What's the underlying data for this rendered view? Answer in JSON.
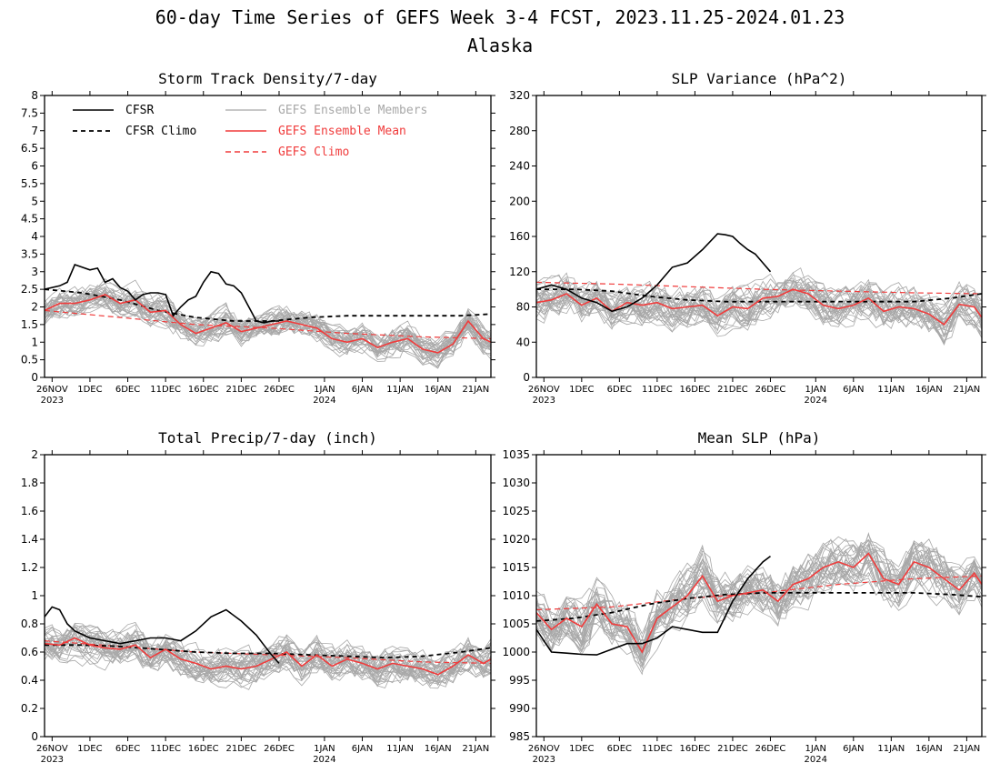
{
  "header": {
    "title": "60-day Time Series of GEFS Week 3-4 FCST, 2023.11.25-2024.01.23",
    "subtitle": "Alaska"
  },
  "legend": {
    "cfsr": "CFSR",
    "cfsr_climo": "CFSR Climo",
    "members": "GEFS Ensemble Members",
    "ens_mean": "GEFS Ensemble Mean",
    "gefs_climo": "GEFS Climo"
  },
  "colors": {
    "cfsr": "#000000",
    "members": "#a8a8a8",
    "ens_mean": "#f03c3c",
    "gefs_climo": "#f03c3c"
  },
  "x_axis": {
    "ticks": [
      {
        "day": 1,
        "label": "26NOV",
        "year": "2023"
      },
      {
        "day": 6,
        "label": "1DEC"
      },
      {
        "day": 11,
        "label": "6DEC"
      },
      {
        "day": 16,
        "label": "11DEC"
      },
      {
        "day": 21,
        "label": "16DEC"
      },
      {
        "day": 26,
        "label": "21DEC"
      },
      {
        "day": 31,
        "label": "26DEC"
      },
      {
        "day": 37,
        "label": "1JAN",
        "year": "2024"
      },
      {
        "day": 42,
        "label": "6JAN"
      },
      {
        "day": 47,
        "label": "11JAN"
      },
      {
        "day": 52,
        "label": "16JAN"
      },
      {
        "day": 57,
        "label": "21JAN"
      }
    ]
  },
  "chart_data": [
    {
      "type": "line",
      "title": "Storm Track Density/7-day",
      "ylim": [
        0,
        8
      ],
      "yticks": [
        "0",
        "0.5",
        "1",
        "1.5",
        "2",
        "2.5",
        "3",
        "3.5",
        "4",
        "4.5",
        "5",
        "5.5",
        "6",
        "6.5",
        "7",
        "7.5",
        "8"
      ],
      "show_legend": true,
      "series": [
        {
          "name": "CFSR",
          "style": "solid-black",
          "x": [
            0,
            2,
            3,
            4,
            6,
            7,
            8,
            9,
            10,
            11,
            12,
            13,
            14,
            15,
            16,
            17,
            18,
            19,
            20,
            21,
            22,
            23,
            24,
            25,
            26,
            27,
            28,
            29,
            30,
            31
          ],
          "y": [
            2.5,
            2.6,
            2.7,
            3.2,
            3.05,
            3.1,
            2.7,
            2.8,
            2.55,
            2.45,
            2.2,
            2.35,
            2.4,
            2.4,
            2.35,
            1.75,
            2.0,
            2.2,
            2.3,
            2.7,
            3.0,
            2.95,
            2.65,
            2.6,
            2.4,
            2.0,
            1.6,
            1.55,
            1.6,
            1.6
          ]
        },
        {
          "name": "CFSR Climo",
          "style": "dashed-black",
          "x": [
            0,
            5,
            10,
            15,
            20,
            25,
            30,
            35,
            40,
            45,
            50,
            55,
            59
          ],
          "y": [
            2.5,
            2.4,
            2.2,
            1.9,
            1.7,
            1.6,
            1.6,
            1.7,
            1.75,
            1.75,
            1.75,
            1.75,
            1.8
          ]
        },
        {
          "name": "GEFS Ensemble Mean",
          "style": "solid-red",
          "x": [
            0,
            2,
            4,
            6,
            8,
            10,
            12,
            14,
            16,
            18,
            20,
            22,
            24,
            26,
            28,
            30,
            32,
            34,
            36,
            38,
            40,
            42,
            44,
            46,
            48,
            50,
            52,
            54,
            56,
            58,
            59
          ],
          "y": [
            1.9,
            2.1,
            2.1,
            2.2,
            2.35,
            2.1,
            2.2,
            1.85,
            1.9,
            1.5,
            1.25,
            1.4,
            1.55,
            1.3,
            1.4,
            1.5,
            1.6,
            1.5,
            1.4,
            1.1,
            1.0,
            1.1,
            0.85,
            1.0,
            1.1,
            0.8,
            0.7,
            0.95,
            1.6,
            1.1,
            1.0
          ]
        },
        {
          "name": "GEFS Climo",
          "style": "dashed-red",
          "x": [
            0,
            10,
            20,
            30,
            40,
            50,
            59
          ],
          "y": [
            1.9,
            1.7,
            1.5,
            1.4,
            1.25,
            1.15,
            1.1
          ]
        }
      ],
      "members": {
        "count": 31,
        "mean_ref": "GEFS Ensemble Mean",
        "spread": 0.55,
        "seed": 11
      }
    },
    {
      "type": "line",
      "title": "SLP Variance (hPa^2)",
      "ylim": [
        0,
        320
      ],
      "yticks": [
        "0",
        "40",
        "80",
        "120",
        "160",
        "200",
        "240",
        "280",
        "320"
      ],
      "show_legend": false,
      "series": [
        {
          "name": "CFSR",
          "style": "solid-black",
          "x": [
            0,
            2,
            4,
            6,
            8,
            10,
            12,
            14,
            16,
            18,
            20,
            22,
            24,
            25,
            26,
            27,
            28,
            29,
            30,
            31
          ],
          "y": [
            100,
            105,
            100,
            90,
            85,
            75,
            80,
            90,
            105,
            125,
            130,
            145,
            163,
            162,
            160,
            152,
            145,
            140,
            130,
            120
          ]
        },
        {
          "name": "CFSR Climo",
          "style": "dashed-black",
          "x": [
            0,
            5,
            10,
            15,
            20,
            25,
            30,
            35,
            40,
            45,
            50,
            55,
            59
          ],
          "y": [
            100,
            100,
            98,
            92,
            88,
            86,
            86,
            86,
            86,
            86,
            86,
            90,
            95
          ]
        },
        {
          "name": "GEFS Ensemble Mean",
          "style": "solid-red",
          "x": [
            0,
            2,
            4,
            6,
            8,
            10,
            12,
            14,
            16,
            18,
            20,
            22,
            24,
            26,
            28,
            30,
            32,
            34,
            36,
            38,
            40,
            42,
            44,
            46,
            48,
            50,
            52,
            54,
            56,
            58,
            59
          ],
          "y": [
            85,
            88,
            95,
            82,
            90,
            75,
            85,
            82,
            85,
            78,
            80,
            82,
            70,
            80,
            78,
            90,
            92,
            100,
            95,
            82,
            78,
            82,
            90,
            75,
            80,
            78,
            72,
            60,
            83,
            80,
            68
          ]
        },
        {
          "name": "GEFS Climo",
          "style": "dashed-red",
          "x": [
            0,
            10,
            20,
            30,
            40,
            50,
            59
          ],
          "y": [
            108,
            106,
            103,
            100,
            98,
            96,
            95
          ]
        }
      ],
      "members": {
        "count": 31,
        "mean_ref": "GEFS Ensemble Mean",
        "spread": 30,
        "seed": 23
      }
    },
    {
      "type": "line",
      "title": "Total Precip/7-day (inch)",
      "ylim": [
        0,
        2
      ],
      "yticks": [
        "0",
        "0.2",
        "0.4",
        "0.6",
        "0.8",
        "1",
        "1.2",
        "1.4",
        "1.6",
        "1.8",
        "2"
      ],
      "show_legend": false,
      "series": [
        {
          "name": "CFSR",
          "style": "solid-black",
          "x": [
            0,
            1,
            2,
            3,
            4,
            6,
            8,
            10,
            12,
            14,
            16,
            18,
            20,
            22,
            24,
            26,
            28,
            29,
            30,
            31
          ],
          "y": [
            0.85,
            0.92,
            0.9,
            0.8,
            0.75,
            0.7,
            0.68,
            0.66,
            0.68,
            0.7,
            0.7,
            0.68,
            0.75,
            0.85,
            0.9,
            0.82,
            0.72,
            0.65,
            0.58,
            0.52
          ]
        },
        {
          "name": "CFSR Climo",
          "style": "dashed-black",
          "x": [
            0,
            5,
            10,
            15,
            20,
            25,
            30,
            35,
            40,
            45,
            50,
            55,
            59
          ],
          "y": [
            0.65,
            0.65,
            0.64,
            0.62,
            0.6,
            0.59,
            0.59,
            0.58,
            0.57,
            0.56,
            0.57,
            0.6,
            0.63
          ]
        },
        {
          "name": "GEFS Ensemble Mean",
          "style": "solid-red",
          "x": [
            0,
            2,
            4,
            6,
            8,
            10,
            12,
            14,
            16,
            18,
            20,
            22,
            24,
            26,
            28,
            30,
            32,
            34,
            36,
            38,
            40,
            42,
            44,
            46,
            48,
            50,
            52,
            54,
            56,
            58,
            59
          ],
          "y": [
            0.66,
            0.65,
            0.7,
            0.65,
            0.63,
            0.62,
            0.65,
            0.56,
            0.62,
            0.55,
            0.52,
            0.48,
            0.5,
            0.48,
            0.5,
            0.55,
            0.6,
            0.5,
            0.58,
            0.5,
            0.55,
            0.52,
            0.48,
            0.52,
            0.5,
            0.48,
            0.44,
            0.5,
            0.58,
            0.52,
            0.55
          ]
        },
        {
          "name": "GEFS Climo",
          "style": "dashed-red",
          "x": [
            0,
            10,
            20,
            30,
            40,
            50,
            59
          ],
          "y": [
            0.68,
            0.64,
            0.6,
            0.58,
            0.56,
            0.53,
            0.52
          ]
        }
      ],
      "members": {
        "count": 31,
        "mean_ref": "GEFS Ensemble Mean",
        "spread": 0.17,
        "seed": 37
      }
    },
    {
      "type": "line",
      "title": "Mean SLP (hPa)",
      "ylim": [
        985,
        1035
      ],
      "yticks": [
        "985",
        "990",
        "995",
        "1000",
        "1005",
        "1010",
        "1015",
        "1020",
        "1025",
        "1030",
        "1035"
      ],
      "show_legend": false,
      "series": [
        {
          "name": "CFSR",
          "style": "solid-black",
          "x": [
            0,
            1,
            2,
            4,
            6,
            8,
            10,
            12,
            14,
            16,
            18,
            20,
            22,
            24,
            26,
            28,
            30,
            31
          ],
          "y": [
            1004,
            1002,
            1000,
            999.8,
            999.6,
            999.5,
            1000.5,
            1001.5,
            1001.5,
            1002.5,
            1004.5,
            1004,
            1003.5,
            1003.5,
            1009,
            1013,
            1016,
            1017
          ]
        },
        {
          "name": "CFSR Climo",
          "style": "dashed-black",
          "x": [
            0,
            5,
            10,
            15,
            20,
            25,
            30,
            35,
            40,
            45,
            50,
            55,
            59
          ],
          "y": [
            1005.5,
            1006,
            1007,
            1008.5,
            1009.5,
            1010.2,
            1010.5,
            1010.5,
            1010.5,
            1010.5,
            1010.5,
            1010.2,
            1009.8
          ]
        },
        {
          "name": "GEFS Ensemble Mean",
          "style": "solid-red",
          "x": [
            0,
            2,
            4,
            6,
            8,
            10,
            12,
            14,
            16,
            18,
            20,
            22,
            24,
            26,
            28,
            30,
            32,
            34,
            36,
            38,
            40,
            42,
            44,
            46,
            48,
            50,
            52,
            54,
            56,
            58,
            59
          ],
          "y": [
            1007,
            1004,
            1006,
            1004.5,
            1008.5,
            1005,
            1004.5,
            1000,
            1006,
            1008,
            1010,
            1013.5,
            1009,
            1010,
            1010.5,
            1011,
            1009,
            1012,
            1013,
            1015,
            1016,
            1015,
            1017.5,
            1013,
            1012,
            1016,
            1015,
            1013,
            1011,
            1014,
            1012
          ]
        },
        {
          "name": "GEFS Climo",
          "style": "dashed-red",
          "x": [
            0,
            10,
            20,
            30,
            40,
            50,
            59
          ],
          "y": [
            1007.5,
            1008,
            1009.5,
            1010.5,
            1012,
            1013,
            1013.5
          ]
        }
      ],
      "members": {
        "count": 31,
        "mean_ref": "GEFS Ensemble Mean",
        "spread": 6,
        "seed": 53
      }
    }
  ]
}
